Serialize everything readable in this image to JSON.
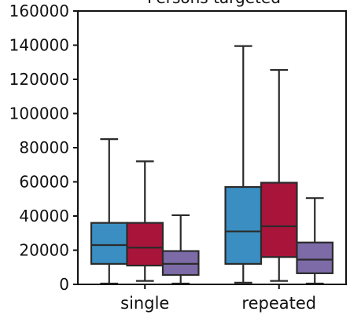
{
  "chart_data": {
    "type": "box",
    "title": "Persons targeted",
    "xlabel": "",
    "ylabel": "",
    "ylim": [
      0,
      160000
    ],
    "yticks": [
      0,
      20000,
      40000,
      60000,
      80000,
      100000,
      120000,
      140000,
      160000
    ],
    "ytick_labels": [
      "0",
      "20000",
      "40000",
      "60000",
      "80000",
      "100000",
      "120000",
      "140000",
      "160000"
    ],
    "categories": [
      "single",
      "repeated"
    ],
    "grid": false,
    "series": [
      {
        "color": "#3a8ec1",
        "boxes": [
          {
            "whislo": 500,
            "q1": 12000,
            "med": 23000,
            "q3": 36000,
            "whishi": 85000
          },
          {
            "whislo": 1000,
            "q1": 12000,
            "med": 31000,
            "q3": 57000,
            "whishi": 139500
          }
        ]
      },
      {
        "color": "#a8143a",
        "boxes": [
          {
            "whislo": 2000,
            "q1": 11000,
            "med": 21500,
            "q3": 36000,
            "whishi": 72000
          },
          {
            "whislo": 2000,
            "q1": 16000,
            "med": 34000,
            "q3": 59500,
            "whishi": 125500
          }
        ]
      },
      {
        "color": "#7d6ba8",
        "boxes": [
          {
            "whislo": 500,
            "q1": 5500,
            "med": 12000,
            "q3": 19500,
            "whishi": 40500
          },
          {
            "whislo": 500,
            "q1": 6500,
            "med": 14500,
            "q3": 24500,
            "whishi": 50500
          }
        ]
      }
    ]
  }
}
